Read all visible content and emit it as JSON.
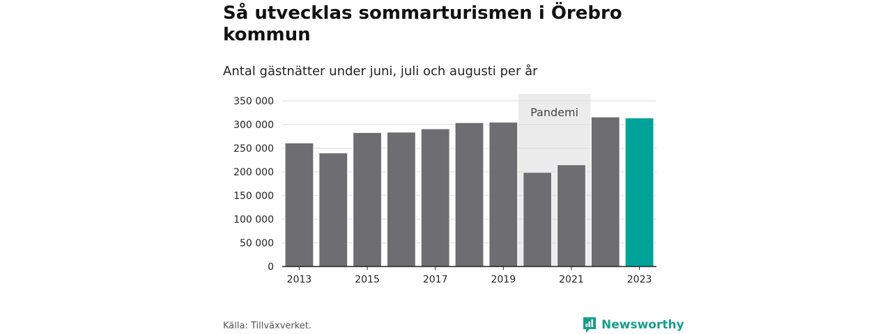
{
  "title": "Så utvecklas sommarturismen i Örebro kommun",
  "subtitle": "Antal gästnätter under juni, juli och augusti per år",
  "source": "Källa: Tillväxverket.",
  "brand": "Newsworthy",
  "colors": {
    "bar": "#6e6d72",
    "highlight": "#00a398",
    "band": "#ececec",
    "grid": "#d9d9d9",
    "axis": "#222222",
    "brand": "#1a9c8c"
  },
  "chart_data": {
    "type": "bar",
    "categories": [
      "2013",
      "2014",
      "2015",
      "2016",
      "2017",
      "2018",
      "2019",
      "2020",
      "2021",
      "2022",
      "2023"
    ],
    "values": [
      261000,
      240000,
      283000,
      284000,
      291000,
      304000,
      305000,
      199000,
      215000,
      316000,
      314000
    ],
    "highlight_index": 10,
    "xlabel": "",
    "ylabel": "",
    "ylim": [
      0,
      350000
    ],
    "yticks": [
      0,
      50000,
      100000,
      150000,
      200000,
      250000,
      300000,
      350000
    ],
    "ytick_labels": [
      "0",
      "50 000",
      "100 000",
      "150 000",
      "200 000",
      "250 000",
      "300 000",
      "350 000"
    ],
    "xtick_labels": [
      "2013",
      "2015",
      "2017",
      "2019",
      "2021",
      "2023"
    ],
    "band": {
      "label": "Pandemi",
      "from": "2020",
      "to": "2021"
    },
    "grid": true,
    "legend": "none"
  }
}
